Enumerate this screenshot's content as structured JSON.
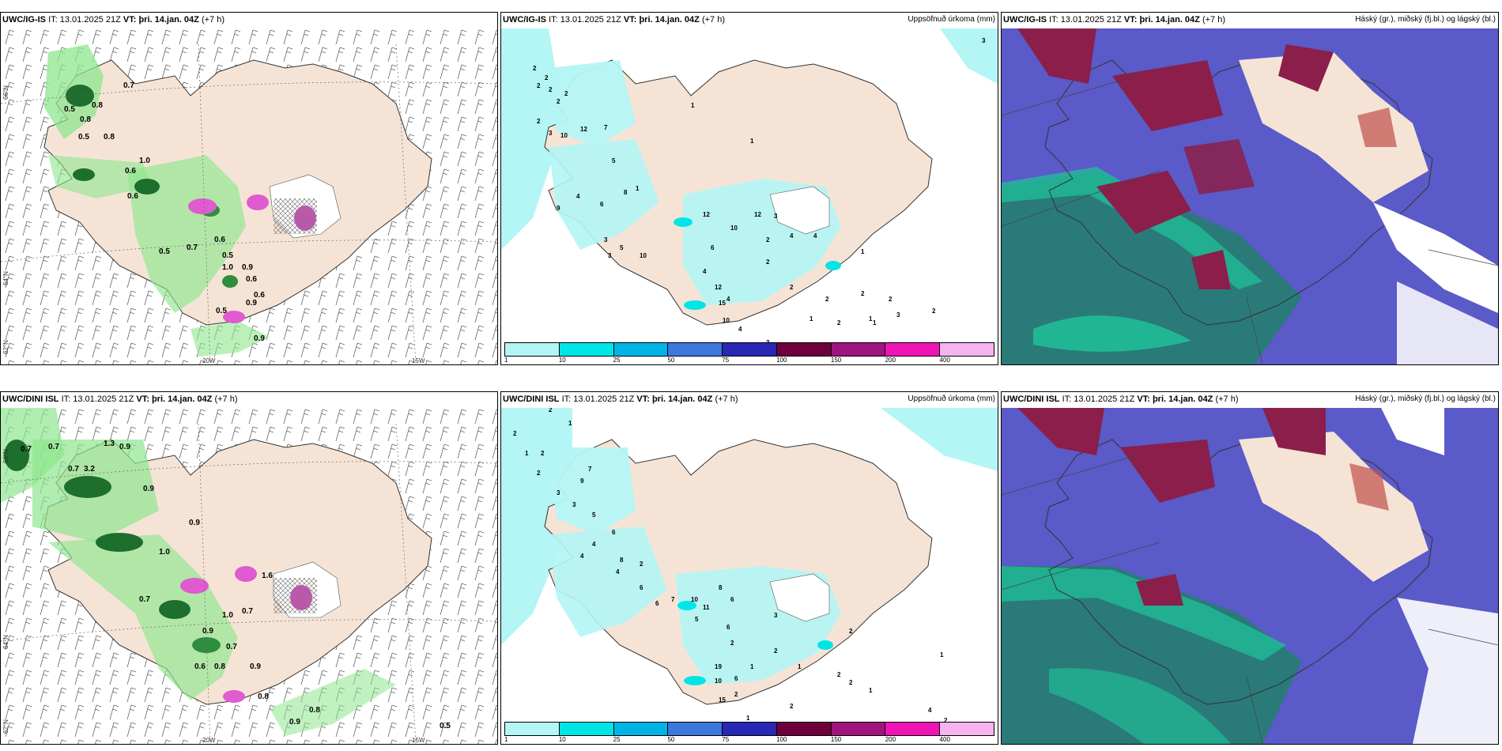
{
  "rows": [
    {
      "model": "UWC/IG-IS",
      "it_label": "IT:",
      "it_value": "13.01.2025 21Z",
      "vt_label": "VT:",
      "vt_value": "þri. 14.jan. 04Z",
      "lead": "(+7 h)",
      "panels": {
        "left": {
          "right_label": ""
        },
        "middle": {
          "right_label": "Uppsöfnuð úrkoma (mm)"
        },
        "right": {
          "right_label": "Háský (gr.), miðský (fj.bl.) og lágský (bl.)"
        }
      }
    },
    {
      "model": "UWC/DINI ISL",
      "it_label": "IT:",
      "it_value": "13.01.2025 21Z",
      "vt_label": "VT:",
      "vt_value": "þri. 14.jan. 04Z",
      "lead": "(+7 h)",
      "panels": {
        "left": {
          "right_label": ""
        },
        "middle": {
          "right_label": "Uppsöfnuð úrkoma (mm)"
        },
        "right": {
          "right_label": "Háský (gr.), miðský (fj.bl.) og lágský (bl.)"
        }
      }
    }
  ],
  "axis_labels": {
    "lat_66": "66°N",
    "lat_64": "64°N",
    "lat_62": "62°N",
    "lon_20": "20W",
    "lon_15": "15W"
  },
  "legend": {
    "ticks": [
      "1",
      "10",
      "25",
      "50",
      "75",
      "100",
      "150",
      "200",
      "400"
    ],
    "colors": [
      "#b4f5f5",
      "#00e6e6",
      "#00b4e6",
      "#3c78dc",
      "#2828b4",
      "#6e003c",
      "#a0147d",
      "#f014b4",
      "#f5b4f0"
    ]
  },
  "colors": {
    "land": "#f5e4d6",
    "sea_cloud_low": "#5a5ac8",
    "cloud_high": "#8b1e4a",
    "cloud_mid_sea": "#2a7a7a",
    "cloud_green": "#1fc59a",
    "precip_light": "#b4f5f5",
    "shower_green": "#8ee68e",
    "shower_dark": "#1e6e2e",
    "shower_pink": "#e05ad0"
  },
  "left_panel_values": {
    "top": [
      "0.7",
      "0.5",
      "0.8",
      "0.8",
      "0.5",
      "0.8",
      "1.0",
      "0.6",
      "0.6",
      "0.5",
      "0.7",
      "0.6",
      "0.5",
      "1.0",
      "0.9",
      "0.6",
      "0.6",
      "0.9",
      "0.5",
      "0.9"
    ],
    "bottom": [
      "0.7",
      "0.7",
      "1.3",
      "0.9",
      "0.7",
      "3.2",
      "0.9",
      "0.9",
      "1.0",
      "0.7",
      "0.7",
      "1.0",
      "0.9",
      "0.7",
      "0.6",
      "0.8",
      "0.8",
      "0.9",
      "0.8",
      "0.5",
      "1.6",
      "0.9"
    ]
  },
  "middle_panel_values": {
    "top": [
      "2",
      "2",
      "2",
      "2",
      "2",
      "2",
      "2",
      "3",
      "10",
      "12",
      "7",
      "5",
      "1",
      "1",
      "9",
      "4",
      "6",
      "8",
      "1",
      "3",
      "3",
      "5",
      "10",
      "12",
      "10",
      "12",
      "6",
      "4",
      "2",
      "2",
      "3",
      "4",
      "2",
      "12",
      "4",
      "15",
      "10",
      "4",
      "3",
      "1",
      "1",
      "2",
      "1",
      "2",
      "2",
      "2",
      "3",
      "1",
      "2",
      "4",
      "3"
    ],
    "bottom": [
      "2",
      "1",
      "2",
      "1",
      "2",
      "2",
      "7",
      "9",
      "3",
      "3",
      "5",
      "4",
      "6",
      "4",
      "8",
      "2",
      "4",
      "7",
      "6",
      "6",
      "8",
      "11",
      "6",
      "10",
      "5",
      "6",
      "3",
      "2",
      "2",
      "19",
      "6",
      "10",
      "15",
      "2",
      "1",
      "1",
      "2",
      "1",
      "2",
      "2",
      "1",
      "1",
      "2",
      "4",
      "2"
    ]
  }
}
